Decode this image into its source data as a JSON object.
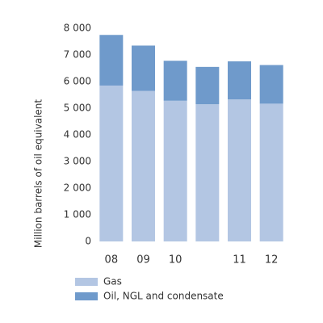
{
  "chart_data": {
    "type": "stacked-bar",
    "y_label": "Million barrels of oil equivalent",
    "categories": [
      "08",
      "09",
      "10",
      null,
      "11",
      "12"
    ],
    "series": [
      {
        "name": "Gas",
        "color": "#b3c6e3",
        "values": [
          5850,
          5650,
          5280,
          5150,
          5330,
          5170
        ]
      },
      {
        "name": "Oil, NGL and condensate",
        "color": "#6f9acb",
        "values": [
          1900,
          1700,
          1500,
          1400,
          1430,
          1450
        ]
      }
    ],
    "ylim": [
      0,
      8000
    ],
    "yticks": [
      0,
      {
        "value": 1000,
        "label": "1 000"
      },
      {
        "value": 2000,
        "label": "2 000"
      },
      {
        "value": 3000,
        "label": "3 000"
      },
      {
        "value": 4000,
        "label": "4 000"
      },
      {
        "value": 5000,
        "label": "5 000"
      },
      {
        "value": 6000,
        "label": "6 000"
      },
      {
        "value": 7000,
        "label": "7 000"
      },
      {
        "value": 8000,
        "label": "8 000"
      }
    ],
    "legend": "bottom-left"
  }
}
